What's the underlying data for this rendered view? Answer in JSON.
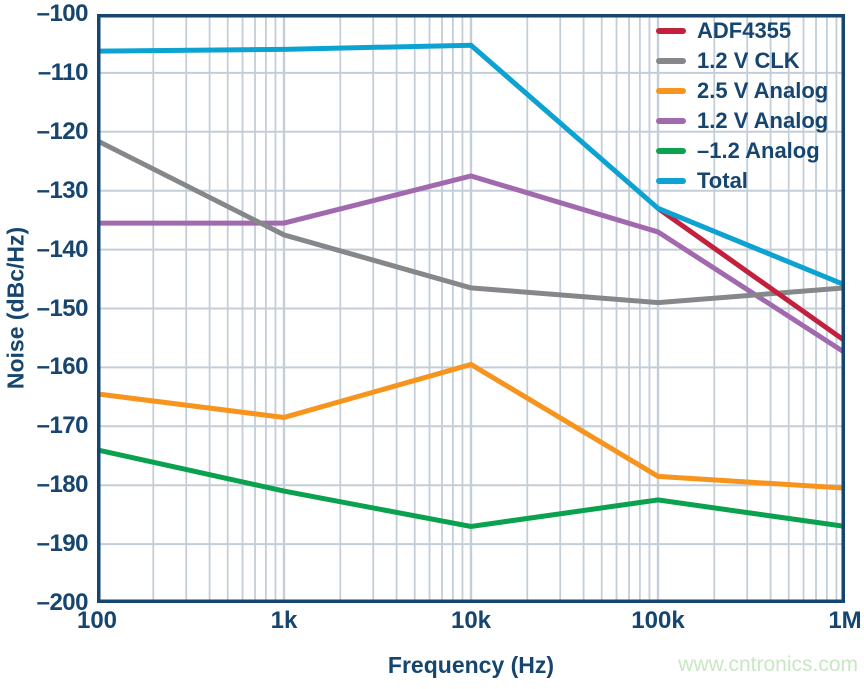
{
  "watermark": "www.cntronics.com",
  "colors": {
    "axis_text": "#16466f",
    "plot_border": "#16466f",
    "gridline": "#c3ced9",
    "background": "#ffffff",
    "watermark": "#c9e7c4"
  },
  "chart_data": {
    "type": "line",
    "title": "",
    "xlabel": "Frequency (Hz)",
    "ylabel": "Noise (dBc/Hz)",
    "x_scale": "log",
    "xlim": [
      100,
      1000000
    ],
    "ylim": [
      -200,
      -100
    ],
    "grid": true,
    "legend_position": "top-right-inside",
    "x_ticks": [
      {
        "label": "100",
        "value": 100
      },
      {
        "label": "1k",
        "value": 1000
      },
      {
        "label": "10k",
        "value": 10000
      },
      {
        "label": "100k",
        "value": 100000
      },
      {
        "label": "1M",
        "value": 1000000
      }
    ],
    "y_ticks": [
      {
        "label": "–100",
        "value": -100
      },
      {
        "label": "–110",
        "value": -110
      },
      {
        "label": "–120",
        "value": -120
      },
      {
        "label": "–130",
        "value": -130
      },
      {
        "label": "–140",
        "value": -140
      },
      {
        "label": "–150",
        "value": -150
      },
      {
        "label": "–160",
        "value": -160
      },
      {
        "label": "–170",
        "value": -170
      },
      {
        "label": "–180",
        "value": -180
      },
      {
        "label": "–190",
        "value": -190
      },
      {
        "label": "–200",
        "value": -200
      }
    ],
    "series": [
      {
        "name": "ADF4355",
        "color": "#c2203c",
        "z": 4,
        "x": [
          100000,
          1000000
        ],
        "values": [
          -133,
          -155.5
        ]
      },
      {
        "name": "1.2 V CLK",
        "color": "#85878a",
        "z": 3,
        "x": [
          100,
          1000,
          10000,
          100000,
          1000000
        ],
        "values": [
          -121.5,
          -137.5,
          -146.5,
          -149,
          -146.5
        ]
      },
      {
        "name": "2.5 V Analog",
        "color": "#f7941d",
        "z": 0,
        "x": [
          100,
          1000,
          10000,
          100000,
          1000000
        ],
        "values": [
          -164.5,
          -168.5,
          -159.5,
          -178.5,
          -180.5
        ]
      },
      {
        "name": "1.2 V Analog",
        "color": "#a169ae",
        "z": 1,
        "x": [
          100,
          1000,
          10000,
          100000,
          1000000
        ],
        "values": [
          -135.5,
          -135.5,
          -127.5,
          -137,
          -157.5
        ]
      },
      {
        "name": "–1.2 Analog",
        "color": "#0aa14f",
        "z": 2,
        "x": [
          100,
          1000,
          10000,
          100000,
          1000000
        ],
        "values": [
          -174,
          -181,
          -187,
          -182.5,
          -187
        ]
      },
      {
        "name": "Total",
        "color": "#0ca3d2",
        "z": 5,
        "x": [
          100,
          1000,
          10000,
          100000,
          1000000
        ],
        "values": [
          -106.3,
          -106,
          -105.3,
          -133,
          -146
        ]
      }
    ]
  }
}
